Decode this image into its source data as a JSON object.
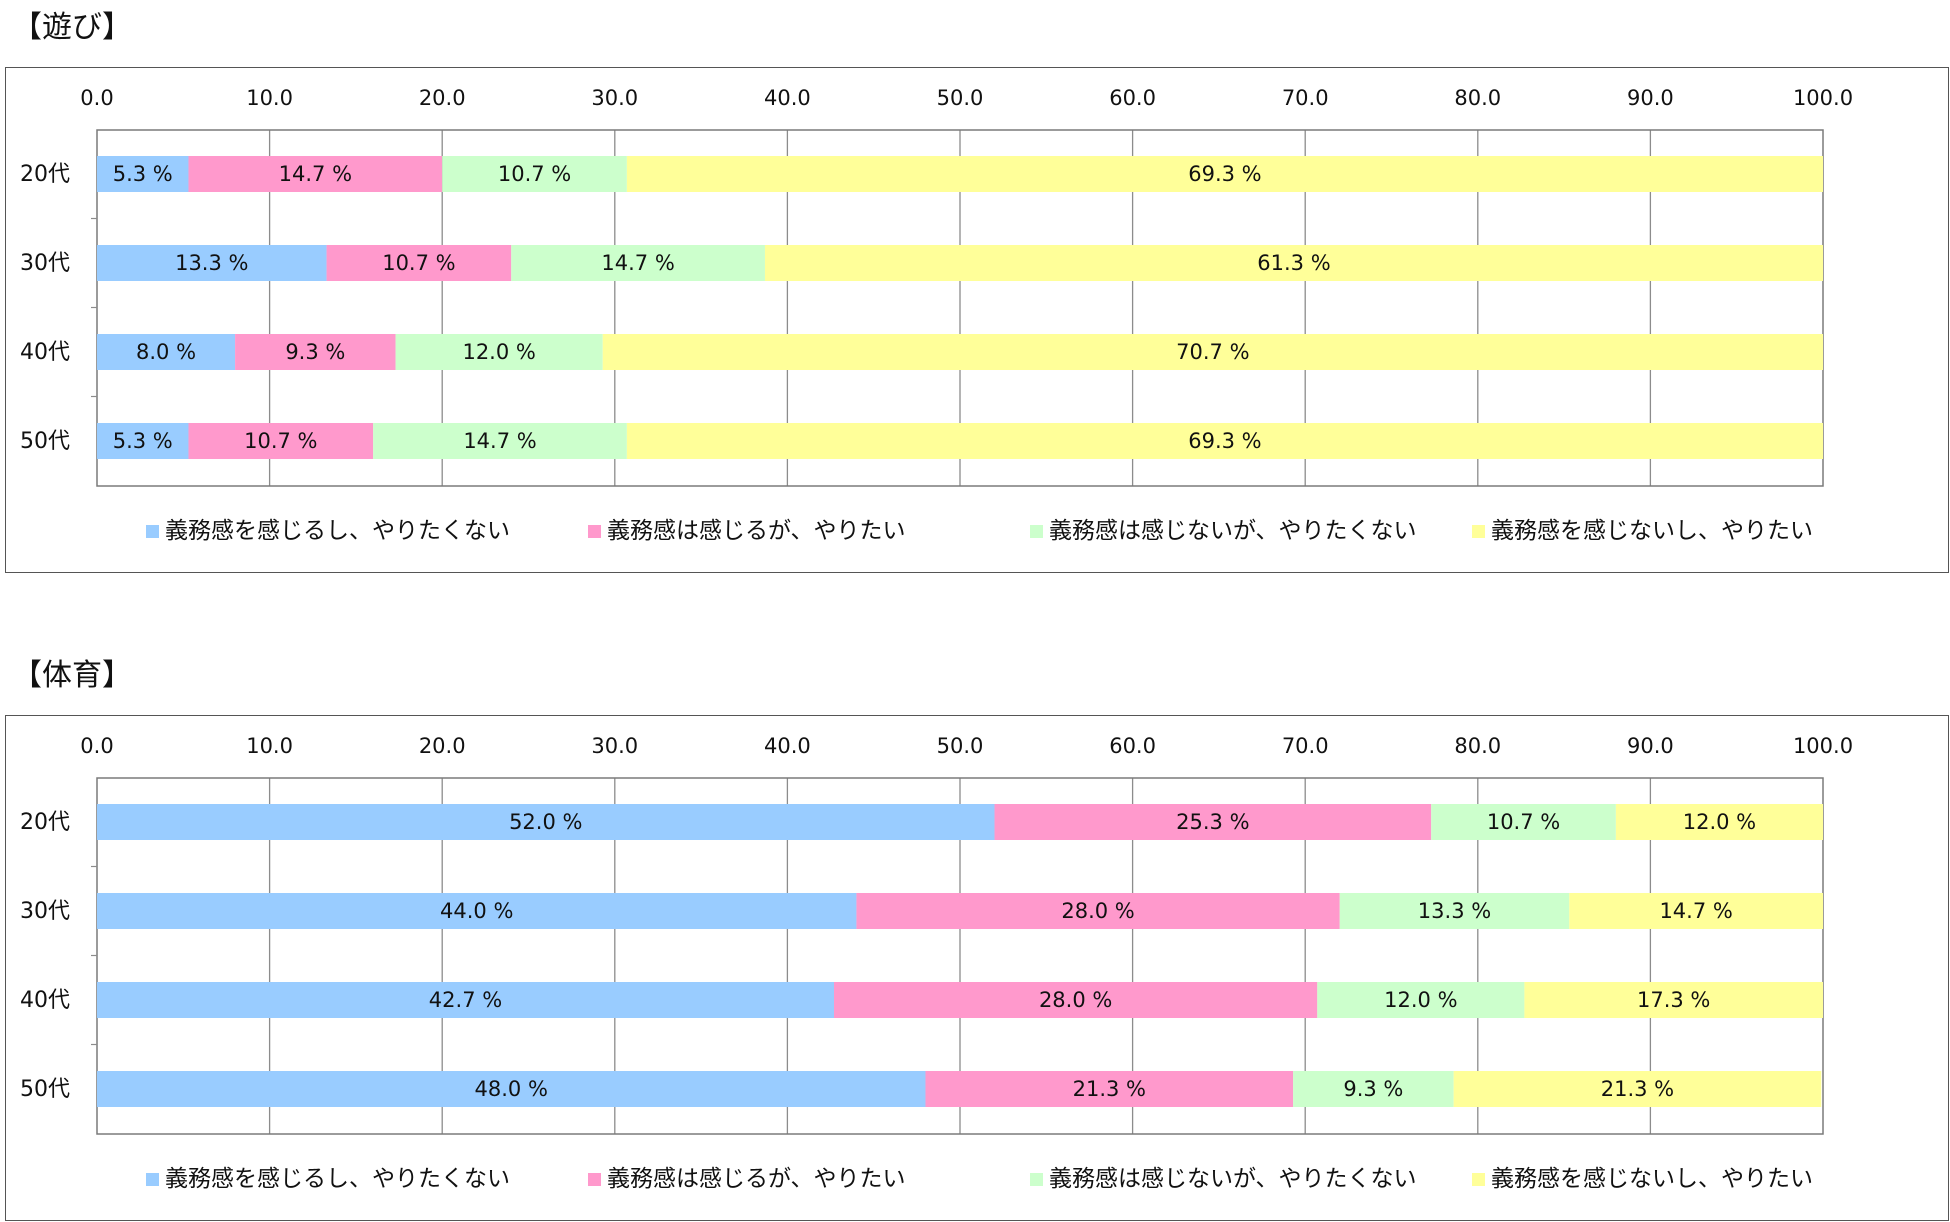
{
  "charts": [
    {
      "title": "【遊び】",
      "chart_data": {
        "type": "bar",
        "orientation": "horizontal",
        "stacked": true,
        "categories": [
          "20代",
          "30代",
          "40代",
          "50代"
        ],
        "xlim": [
          0,
          100
        ],
        "xticks": [
          "0.0",
          "10.0",
          "20.0",
          "30.0",
          "40.0",
          "50.0",
          "60.0",
          "70.0",
          "80.0",
          "90.0",
          "100.0"
        ],
        "grid": true,
        "legend_position": "bottom",
        "series": [
          {
            "name": "義務感を感じるし、やりたくない",
            "color": "#99ccff",
            "values": [
              5.3,
              13.3,
              8.0,
              5.3
            ],
            "labels": [
              "5.3 %",
              "13.3 %",
              "8.0 %",
              "5.3 %"
            ]
          },
          {
            "name": "義務感は感じるが、やりたい",
            "color": "#ff99cc",
            "values": [
              14.7,
              10.7,
              9.3,
              10.7
            ],
            "labels": [
              "14.7 %",
              "10.7 %",
              "9.3 %",
              "10.7 %"
            ]
          },
          {
            "name": "義務感は感じないが、やりたくない",
            "color": "#ccffcc",
            "values": [
              10.7,
              14.7,
              12.0,
              14.7
            ],
            "labels": [
              "10.7 %",
              "14.7 %",
              "12.0 %",
              "14.7 %"
            ]
          },
          {
            "name": "義務感を感じないし、やりたい",
            "color": "#ffff99",
            "values": [
              69.3,
              61.3,
              70.7,
              69.3
            ],
            "labels": [
              "69.3 %",
              "61.3 %",
              "70.7 %",
              "69.3 %"
            ]
          }
        ]
      }
    },
    {
      "title": "【体育】",
      "chart_data": {
        "type": "bar",
        "orientation": "horizontal",
        "stacked": true,
        "categories": [
          "20代",
          "30代",
          "40代",
          "50代"
        ],
        "xlim": [
          0,
          100
        ],
        "xticks": [
          "0.0",
          "10.0",
          "20.0",
          "30.0",
          "40.0",
          "50.0",
          "60.0",
          "70.0",
          "80.0",
          "90.0",
          "100.0"
        ],
        "grid": true,
        "legend_position": "bottom",
        "series": [
          {
            "name": "義務感を感じるし、やりたくない",
            "color": "#99ccff",
            "values": [
              52.0,
              44.0,
              42.7,
              48.0
            ],
            "labels": [
              "52.0 %",
              "44.0 %",
              "42.7 %",
              "48.0 %"
            ]
          },
          {
            "name": "義務感は感じるが、やりたい",
            "color": "#ff99cc",
            "values": [
              25.3,
              28.0,
              28.0,
              21.3
            ],
            "labels": [
              "25.3 %",
              "28.0 %",
              "28.0 %",
              "21.3 %"
            ]
          },
          {
            "name": "義務感は感じないが、やりたくない",
            "color": "#ccffcc",
            "values": [
              10.7,
              13.3,
              12.0,
              9.3
            ],
            "labels": [
              "10.7 %",
              "13.3 %",
              "12.0 %",
              "9.3 %"
            ]
          },
          {
            "name": "義務感を感じないし、やりたい",
            "color": "#ffff99",
            "values": [
              12.0,
              14.7,
              17.3,
              21.3
            ],
            "labels": [
              "12.0 %",
              "14.7 %",
              "17.3 %",
              "21.3 %"
            ]
          }
        ]
      }
    }
  ]
}
